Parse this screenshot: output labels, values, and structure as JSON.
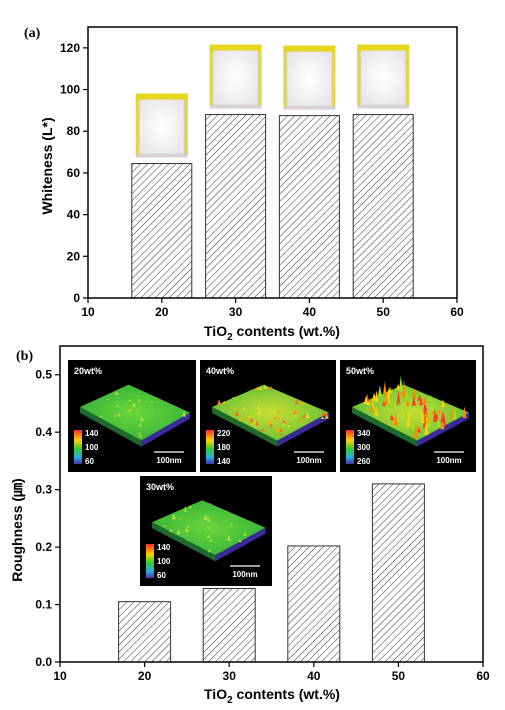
{
  "chart_data": [
    {
      "panel": "(a)",
      "type": "bar",
      "x": [
        20,
        30,
        40,
        50
      ],
      "values": [
        64.5,
        88.0,
        87.5,
        88.0
      ],
      "xlim": [
        10,
        60
      ],
      "ylim": [
        0,
        130
      ],
      "xticks": [
        "10",
        "20",
        "30",
        "40",
        "50",
        "60"
      ],
      "yticks": [
        "0",
        "20",
        "40",
        "60",
        "80",
        "100",
        "120"
      ],
      "xlabel": "TiO₂ contents (wt.%)",
      "ylabel": "Whiteness (L*)",
      "bar_fill": "hatched"
    },
    {
      "panel": "(b)",
      "type": "bar",
      "x": [
        20,
        30,
        40,
        50
      ],
      "values": [
        0.105,
        0.128,
        0.202,
        0.31
      ],
      "xlim": [
        10,
        60
      ],
      "ylim": [
        0,
        0.55
      ],
      "xticks": [
        "10",
        "20",
        "30",
        "40",
        "50",
        "60"
      ],
      "yticks": [
        "0.0",
        "0.1",
        "0.2",
        "0.3",
        "0.4",
        "0.5"
      ],
      "xlabel": "TiO₂ contents (wt.%)",
      "ylabel": "Roughness (㎛)",
      "bar_fill": "hatched",
      "insets": [
        {
          "label": "20wt%",
          "scale": "100nm",
          "colorbar": [
            "140",
            "100",
            "60"
          ]
        },
        {
          "label": "40wt%",
          "scale": "100nm",
          "colorbar": [
            "220",
            "180",
            "140"
          ]
        },
        {
          "label": "50wt%",
          "scale": "100nm",
          "colorbar": [
            "340",
            "300",
            "260"
          ]
        },
        {
          "label": "30wt%",
          "scale": "100nm",
          "colorbar": [
            "140",
            "100",
            "60"
          ]
        }
      ]
    }
  ],
  "colors": {
    "axis": "#000000",
    "inset_background": "#000000",
    "surface_green": "#3cc43c",
    "photo_yellow": "#e8d61c",
    "photo_fabric": "#f3f1f3"
  }
}
